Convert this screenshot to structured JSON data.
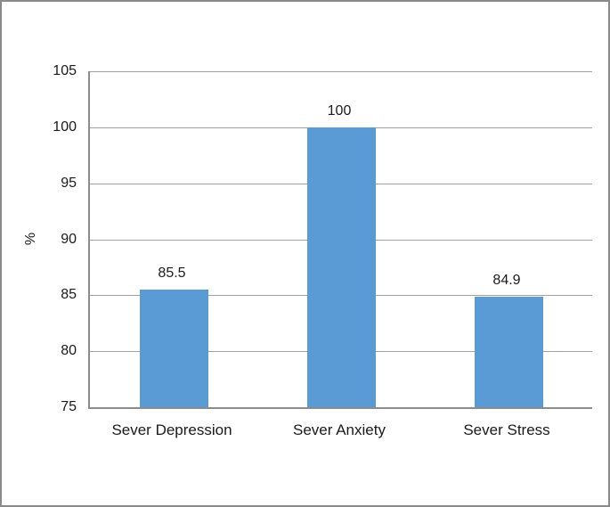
{
  "chart_data": {
    "type": "bar",
    "title": "",
    "categories": [
      "Sever Depression",
      "Sever Anxiety",
      "Sever Stress"
    ],
    "values": [
      85.5,
      100,
      84.9
    ],
    "data_labels": [
      "85.5",
      "100",
      "84.9"
    ],
    "xlabel": "",
    "ylabel": "%",
    "ylim": [
      75,
      105
    ],
    "yticks": [
      105,
      100,
      95,
      90,
      85,
      80,
      75
    ],
    "grid": true,
    "legend": false,
    "colors": {
      "bar": "#5B9BD5",
      "gridline": "#A0A0A0",
      "axis": "#8C8C8C",
      "text": "#1A1A1A",
      "figure_border": "#8A8A8A",
      "background": "#FFFFFF"
    }
  }
}
